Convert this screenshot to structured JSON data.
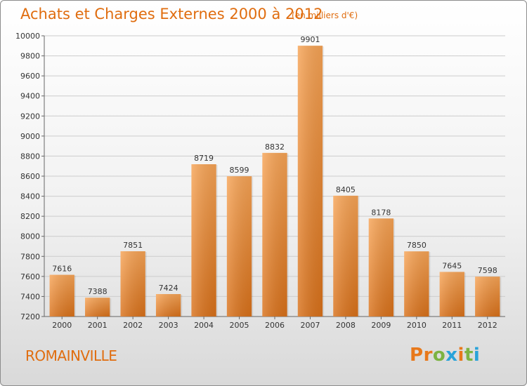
{
  "header": {
    "title": "Achats et Charges Externes 2000 à 2012",
    "unit": "(en milliers d'€)"
  },
  "footer": {
    "city": "ROMAINVILLE",
    "brand": "Proxiti",
    "brand_colors": [
      "#e8781a",
      "#e8781a",
      "#7cb342",
      "#29a3d9",
      "#e8781a",
      "#7cb342",
      "#29a3d9"
    ]
  },
  "colors": {
    "title": "#e06d0f",
    "bar_top": "#f7a456",
    "bar_bottom": "#d9711a",
    "grid": "#cccccc"
  },
  "chart_data": {
    "type": "bar",
    "title": "Achats et Charges Externes 2000 à 2012",
    "subtitle": "(en milliers d'€)",
    "categories": [
      "2000",
      "2001",
      "2002",
      "2003",
      "2004",
      "2005",
      "2006",
      "2007",
      "2008",
      "2009",
      "2010",
      "2011",
      "2012"
    ],
    "values": [
      7616,
      7388,
      7851,
      7424,
      8719,
      8599,
      8832,
      9901,
      8405,
      8178,
      7850,
      7645,
      7598
    ],
    "ylim": [
      7200,
      10000
    ],
    "yticks": [
      7200,
      7400,
      7600,
      7800,
      8000,
      8200,
      8400,
      8600,
      8800,
      9000,
      9200,
      9400,
      9600,
      9800,
      10000
    ],
    "grid": true,
    "xlabel": "",
    "ylabel": ""
  }
}
